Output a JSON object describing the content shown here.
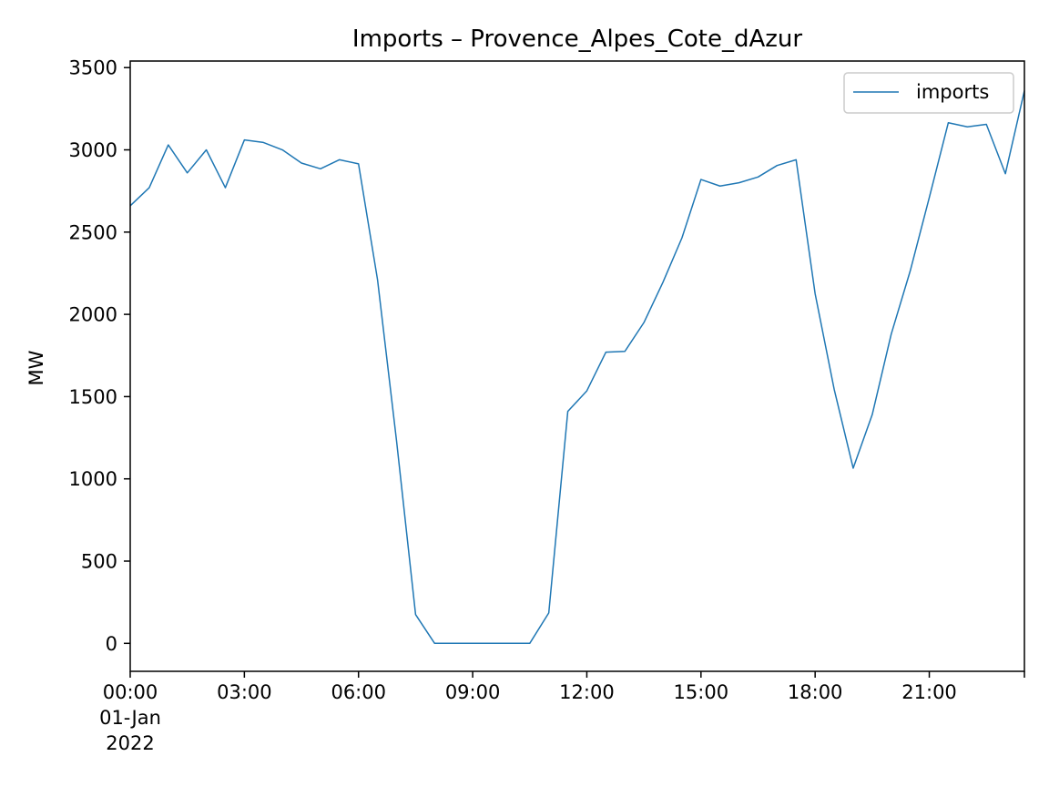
{
  "chart_data": {
    "type": "line",
    "title": "Imports – Provence_Alpes_Cote_dAzur",
    "xlabel": "",
    "ylabel": "MW",
    "xlim_hours": [
      0,
      23.5
    ],
    "ylim": [
      -170,
      3540
    ],
    "yticks": [
      0,
      500,
      1000,
      1500,
      2000,
      2500,
      3000,
      3500
    ],
    "xticks": [
      {
        "hour": 0,
        "lines": [
          "00:00",
          "01-Jan",
          "2022"
        ]
      },
      {
        "hour": 3,
        "lines": [
          "03:00"
        ]
      },
      {
        "hour": 6,
        "lines": [
          "06:00"
        ]
      },
      {
        "hour": 9,
        "lines": [
          "09:00"
        ]
      },
      {
        "hour": 12,
        "lines": [
          "12:00"
        ]
      },
      {
        "hour": 15,
        "lines": [
          "15:00"
        ]
      },
      {
        "hour": 18,
        "lines": [
          "18:00"
        ]
      },
      {
        "hour": 21,
        "lines": [
          "21:00"
        ]
      }
    ],
    "legend_position": "top-right",
    "grid": false,
    "series": [
      {
        "name": "imports",
        "color": "#1f77b4",
        "x_hours": [
          0,
          0.5,
          1,
          1.5,
          2,
          2.5,
          3,
          3.5,
          4,
          4.5,
          5,
          5.5,
          6,
          6.5,
          7,
          7.5,
          8,
          8.5,
          9,
          9.5,
          10,
          10.5,
          11,
          11.5,
          12,
          12.5,
          13,
          13.5,
          14,
          14.5,
          15,
          15.5,
          16,
          16.5,
          17,
          17.5,
          18,
          18.5,
          19,
          19.5,
          20,
          20.5,
          21,
          21.5,
          22,
          22.5,
          23,
          23.5
        ],
        "values": [
          2660,
          2770,
          3030,
          2860,
          3000,
          2770,
          3060,
          3045,
          3000,
          2920,
          2885,
          2940,
          2915,
          2210,
          1230,
          175,
          0,
          0,
          0,
          0,
          0,
          0,
          185,
          1410,
          1535,
          1770,
          1775,
          1950,
          2195,
          2465,
          2820,
          2780,
          2800,
          2835,
          2905,
          2940,
          2125,
          1545,
          1065,
          1390,
          1880,
          2265,
          2710,
          3165,
          3140,
          3155,
          2855,
          3360
        ]
      }
    ]
  }
}
